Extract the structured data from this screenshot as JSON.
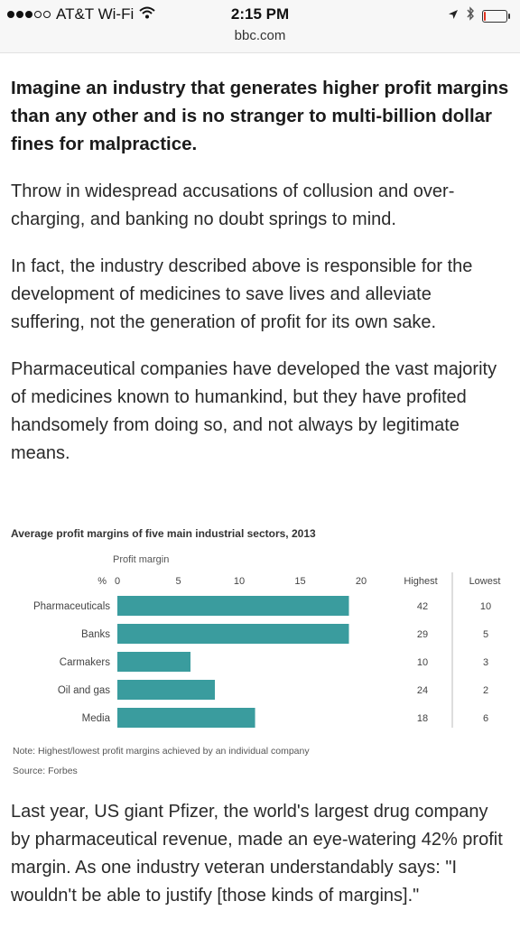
{
  "status_bar": {
    "carrier": "AT&T Wi-Fi",
    "time": "2:15 PM",
    "url": "bbc.com",
    "battery_level": 0.08,
    "battery_color": "#e0331f",
    "icons": [
      "signal-icon",
      "wifi-icon",
      "location-arrow-icon",
      "bluetooth-icon",
      "battery-icon"
    ]
  },
  "article": {
    "lead": "Imagine an industry that generates higher profit margins than any other and is no stranger to multi-billion dollar fines for malpractice.",
    "paragraphs": [
      "Throw in widespread accusations of collusion and over-charging, and banking no doubt springs to mind.",
      "In fact, the industry described above is responsible for the development of medicines to save lives and alleviate suffering, not the generation of profit for its own sake.",
      "Pharmaceutical companies have developed the vast majority of medicines known to humankind, but they have profited handsomely from doing so, and not always by legitimate means."
    ],
    "after_chart": "Last year, US giant Pfizer, the world's largest drug company by pharmaceutical revenue, made an eye-watering 42% profit margin. As one industry veteran understandably says: \"I wouldn't be able to justify [those kinds of margins].\""
  },
  "chart_data": {
    "type": "bar",
    "orientation": "horizontal",
    "title": "Average profit margins of five main industrial sectors, 2013",
    "subtitle": "Profit margin",
    "unit_label": "%",
    "categories": [
      "Pharmaceuticals",
      "Banks",
      "Carmakers",
      "Oil and gas",
      "Media"
    ],
    "values": [
      19,
      19,
      6,
      8,
      11.3
    ],
    "xlim": [
      0,
      20
    ],
    "xticks": [
      0,
      5,
      10,
      15,
      20
    ],
    "table_headers": [
      "Highest",
      "Lowest"
    ],
    "highest": [
      42,
      29,
      10,
      24,
      18
    ],
    "lowest": [
      10,
      5,
      3,
      2,
      6
    ],
    "note": "Note: Highest/lowest profit margins achieved by an individual company",
    "source": "Source: Forbes",
    "bar_color": "#3a9c9e",
    "grid": false
  }
}
